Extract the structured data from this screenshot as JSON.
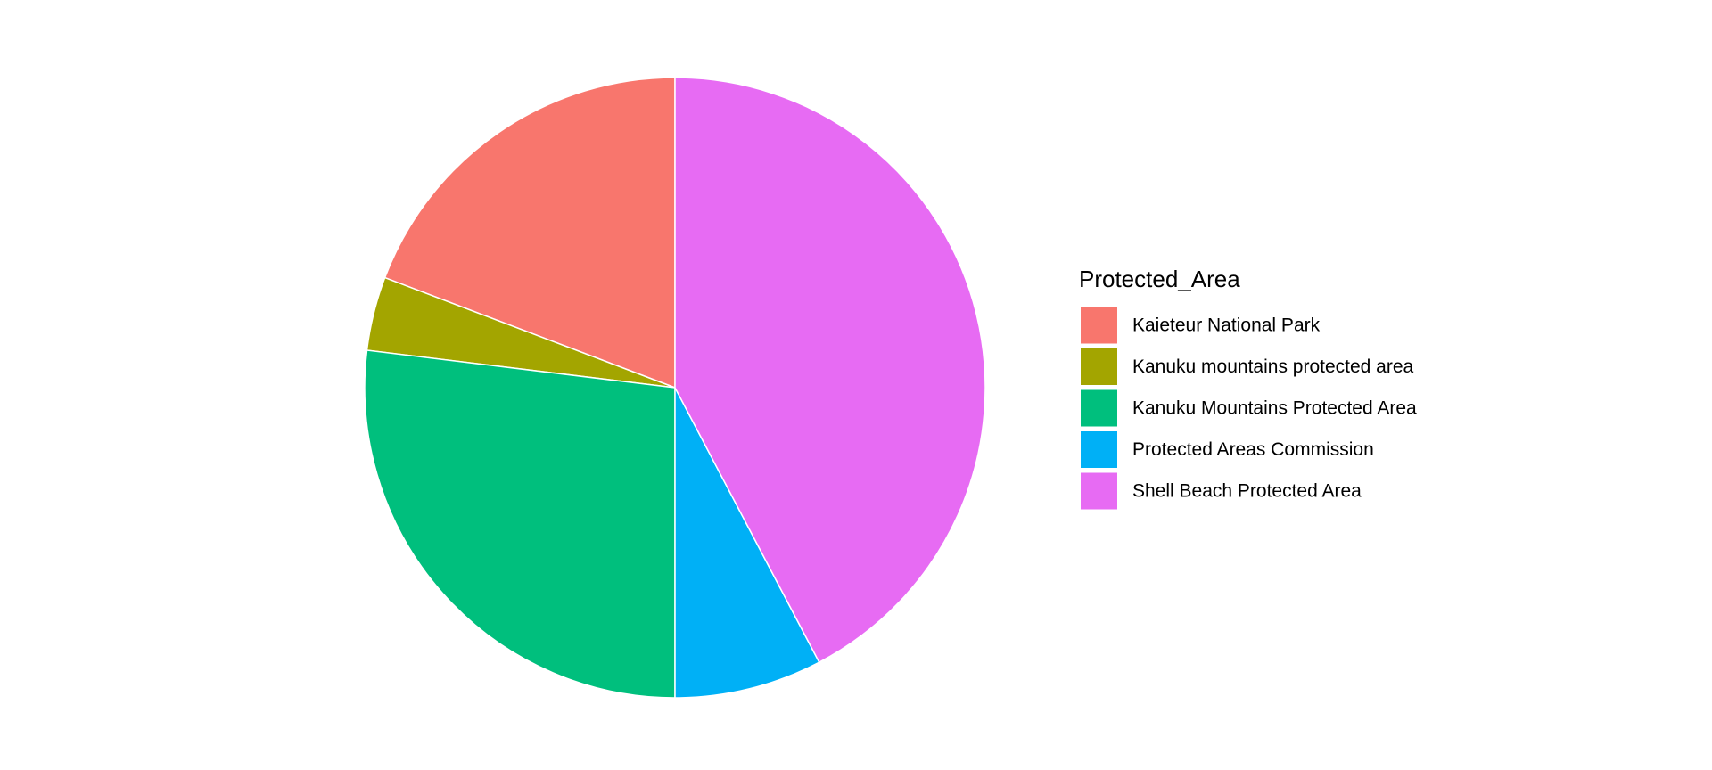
{
  "chart_data": {
    "type": "pie",
    "legend_title": "Protected_Area",
    "categories": [
      "Kaieteur National Park",
      "Kanuku mountains protected area",
      "Kanuku Mountains Protected Area",
      "Protected Areas Commission",
      "Shell Beach Protected Area"
    ],
    "values": [
      5,
      1,
      7,
      2,
      11
    ],
    "colors": [
      "#f8766d",
      "#a3a500",
      "#00bf7d",
      "#00b0f6",
      "#e76bf3"
    ],
    "legend": "right"
  }
}
